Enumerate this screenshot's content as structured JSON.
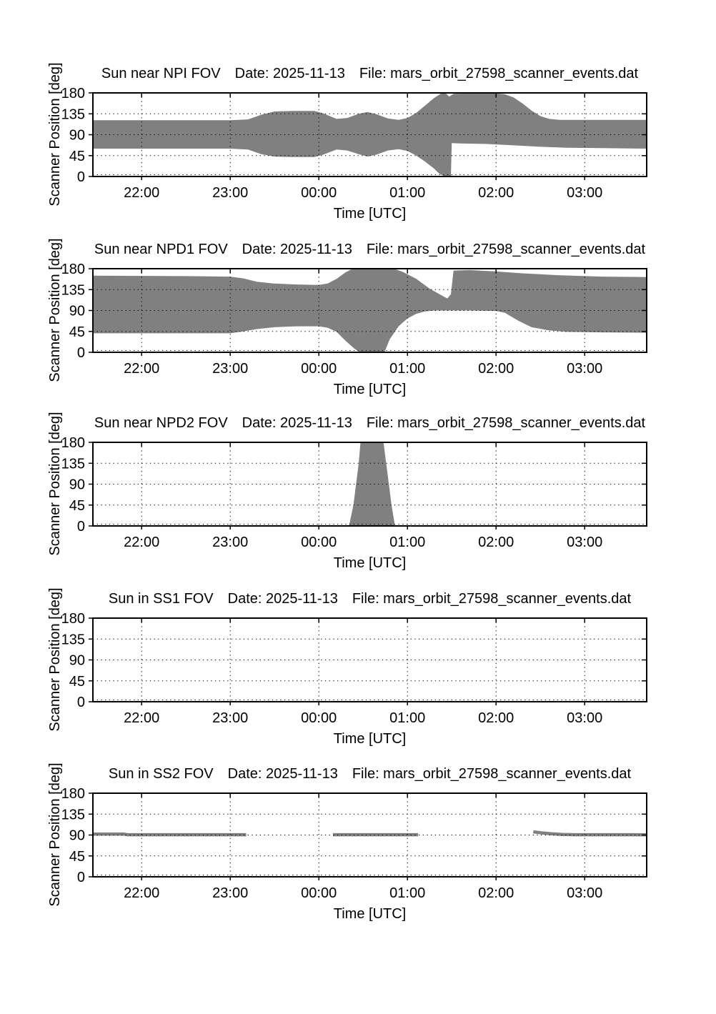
{
  "figure": {
    "background": "#ffffff",
    "fill_color": "#808080",
    "axis_color": "#000000",
    "x_axis_label": "Time [UTC]",
    "y_axis_label": "Scanner Position [deg]",
    "x_tick_labels": [
      "22:00",
      "23:00",
      "00:00",
      "01:00",
      "02:00",
      "03:00"
    ],
    "x_tick_values": [
      22,
      23,
      24,
      25,
      26,
      27
    ],
    "y_tick_labels": [
      "0",
      "45",
      "90",
      "135",
      "180"
    ],
    "y_tick_values": [
      0,
      45,
      90,
      135,
      180
    ],
    "x_range_hours": [
      21.45,
      27.7
    ],
    "y_range_deg": [
      0,
      180
    ],
    "x_encoding_note": "x in hours UTC relative to 2025-11-13; values >= 24 are after midnight (24 = 00:00, 27 = 03:00)"
  },
  "chart_data": [
    {
      "type": "area",
      "id": "sun-near-npi-fov",
      "title_fov": "Sun near NPI FOV",
      "title_date": "Date: 2025-11-13",
      "title_file": "File: mars_orbit_27598_scanner_events.dat",
      "title": "Sun near NPI FOV   Date: 2025-11-13   File: mars_orbit_27598_scanner_events.dat",
      "xlabel": "Time [UTC]",
      "ylabel": "Scanner Position [deg]",
      "ylim": [
        0,
        180
      ],
      "regions": [
        {
          "outline": [
            [
              21.45,
              121
            ],
            [
              22.3,
              121
            ],
            [
              23.0,
              121
            ],
            [
              23.2,
              123
            ],
            [
              23.35,
              133
            ],
            [
              23.5,
              140
            ],
            [
              23.7,
              141
            ],
            [
              23.95,
              141
            ],
            [
              24.05,
              136
            ],
            [
              24.2,
              124
            ],
            [
              24.32,
              126
            ],
            [
              24.45,
              135
            ],
            [
              24.55,
              139
            ],
            [
              24.65,
              134
            ],
            [
              24.78,
              125
            ],
            [
              24.9,
              122
            ],
            [
              25.0,
              126
            ],
            [
              25.1,
              137
            ],
            [
              25.2,
              153
            ],
            [
              25.3,
              169
            ],
            [
              25.38,
              179
            ],
            [
              25.43,
              180
            ],
            [
              25.47,
              172
            ],
            [
              25.52,
              178
            ],
            [
              25.7,
              179
            ],
            [
              26.0,
              179
            ],
            [
              26.1,
              177
            ],
            [
              26.2,
              170
            ],
            [
              26.3,
              157
            ],
            [
              26.4,
              142
            ],
            [
              26.5,
              130
            ],
            [
              26.6,
              124
            ],
            [
              26.72,
              122
            ],
            [
              27.7,
              122
            ],
            [
              27.7,
              60
            ],
            [
              27.2,
              61
            ],
            [
              26.8,
              62
            ],
            [
              26.5,
              64
            ],
            [
              26.2,
              67
            ],
            [
              25.9,
              70
            ],
            [
              25.6,
              71
            ],
            [
              25.5,
              72
            ],
            [
              25.49,
              0
            ],
            [
              25.42,
              0
            ],
            [
              25.36,
              6
            ],
            [
              25.3,
              17
            ],
            [
              25.2,
              32
            ],
            [
              25.1,
              45
            ],
            [
              25.0,
              55
            ],
            [
              24.9,
              59
            ],
            [
              24.78,
              56
            ],
            [
              24.65,
              47
            ],
            [
              24.55,
              43
            ],
            [
              24.45,
              48
            ],
            [
              24.32,
              56
            ],
            [
              24.2,
              58
            ],
            [
              24.05,
              47
            ],
            [
              23.95,
              42
            ],
            [
              23.7,
              42
            ],
            [
              23.5,
              43
            ],
            [
              23.35,
              48
            ],
            [
              23.2,
              58
            ],
            [
              23.0,
              60
            ],
            [
              22.3,
              60
            ],
            [
              21.45,
              60
            ]
          ]
        }
      ],
      "lines": []
    },
    {
      "type": "area",
      "id": "sun-near-npd1-fov",
      "title_fov": "Sun near NPD1 FOV",
      "title_date": "Date: 2025-11-13",
      "title_file": "File: mars_orbit_27598_scanner_events.dat",
      "title": "Sun near NPD1 FOV   Date: 2025-11-13   File: mars_orbit_27598_scanner_events.dat",
      "xlabel": "Time [UTC]",
      "ylabel": "Scanner Position [deg]",
      "ylim": [
        0,
        180
      ],
      "regions": [
        {
          "outline": [
            [
              21.45,
              165
            ],
            [
              22.5,
              164
            ],
            [
              23.0,
              163
            ],
            [
              23.15,
              159
            ],
            [
              23.3,
              152
            ],
            [
              23.5,
              148
            ],
            [
              23.75,
              146
            ],
            [
              24.0,
              145
            ],
            [
              24.1,
              148
            ],
            [
              24.2,
              158
            ],
            [
              24.3,
              172
            ],
            [
              24.38,
              180
            ],
            [
              24.85,
              180
            ],
            [
              24.95,
              173
            ],
            [
              25.1,
              158
            ],
            [
              25.25,
              137
            ],
            [
              25.4,
              121
            ],
            [
              25.45,
              116
            ],
            [
              25.49,
              125
            ],
            [
              25.52,
              176
            ],
            [
              25.7,
              177
            ],
            [
              26.0,
              174
            ],
            [
              26.3,
              170
            ],
            [
              26.7,
              166
            ],
            [
              27.2,
              163
            ],
            [
              27.7,
              162
            ],
            [
              27.7,
              42
            ],
            [
              27.2,
              43
            ],
            [
              26.8,
              44
            ],
            [
              26.6,
              47
            ],
            [
              26.4,
              54
            ],
            [
              26.25,
              68
            ],
            [
              26.1,
              85
            ],
            [
              26.0,
              89
            ],
            [
              25.7,
              90
            ],
            [
              25.3,
              90
            ],
            [
              25.2,
              88
            ],
            [
              25.1,
              83
            ],
            [
              25.0,
              73
            ],
            [
              24.9,
              56
            ],
            [
              24.8,
              28
            ],
            [
              24.74,
              0
            ],
            [
              24.46,
              0
            ],
            [
              24.4,
              8
            ],
            [
              24.3,
              25
            ],
            [
              24.2,
              44
            ],
            [
              24.1,
              53
            ],
            [
              24.0,
              56
            ],
            [
              23.75,
              56
            ],
            [
              23.5,
              54
            ],
            [
              23.3,
              50
            ],
            [
              23.15,
              45
            ],
            [
              23.0,
              41
            ],
            [
              22.3,
              41
            ],
            [
              21.45,
              41
            ]
          ]
        }
      ],
      "lines": []
    },
    {
      "type": "area",
      "id": "sun-near-npd2-fov",
      "title_fov": "Sun near NPD2 FOV",
      "title_date": "Date: 2025-11-13",
      "title_file": "File: mars_orbit_27598_scanner_events.dat",
      "title": "Sun near NPD2 FOV   Date: 2025-11-13   File: mars_orbit_27598_scanner_events.dat",
      "xlabel": "Time [UTC]",
      "ylabel": "Scanner Position [deg]",
      "ylim": [
        0,
        180
      ],
      "regions": [
        {
          "outline": [
            [
              24.47,
              180
            ],
            [
              24.73,
              180
            ],
            [
              24.76,
              135
            ],
            [
              24.79,
              90
            ],
            [
              24.82,
              45
            ],
            [
              24.86,
              0
            ],
            [
              24.34,
              0
            ],
            [
              24.39,
              45
            ],
            [
              24.42,
              90
            ],
            [
              24.45,
              135
            ],
            [
              24.47,
              180
            ]
          ]
        }
      ],
      "lines": []
    },
    {
      "type": "area",
      "id": "sun-in-ss1-fov",
      "title_fov": "Sun in SS1 FOV",
      "title_date": "Date: 2025-11-13",
      "title_file": "File: mars_orbit_27598_scanner_events.dat",
      "title": "Sun in SS1 FOV   Date: 2025-11-13   File: mars_orbit_27598_scanner_events.dat",
      "xlabel": "Time [UTC]",
      "ylabel": "Scanner Position [deg]",
      "ylim": [
        0,
        180
      ],
      "regions": [],
      "lines": []
    },
    {
      "type": "line",
      "id": "sun-in-ss2-fov",
      "title_fov": "Sun in SS2 FOV",
      "title_date": "Date: 2025-11-13",
      "title_file": "File: mars_orbit_27598_scanner_events.dat",
      "title": "Sun in SS2 FOV   Date: 2025-11-13   File: mars_orbit_27598_scanner_events.dat",
      "xlabel": "Time [UTC]",
      "ylabel": "Scanner Position [deg]",
      "ylim": [
        0,
        180
      ],
      "regions": [],
      "lines": [
        [
          [
            21.45,
            91.8
          ],
          [
            21.8,
            91.8
          ],
          [
            21.84,
            90.6
          ],
          [
            23.18,
            90.6
          ]
        ],
        [
          [
            24.16,
            90.6
          ],
          [
            25.12,
            90.6
          ]
        ],
        [
          [
            26.42,
            96.8
          ],
          [
            26.52,
            94.5
          ],
          [
            26.62,
            92.6
          ],
          [
            26.75,
            91.2
          ],
          [
            26.9,
            90.6
          ],
          [
            27.7,
            90.4
          ]
        ]
      ]
    }
  ]
}
